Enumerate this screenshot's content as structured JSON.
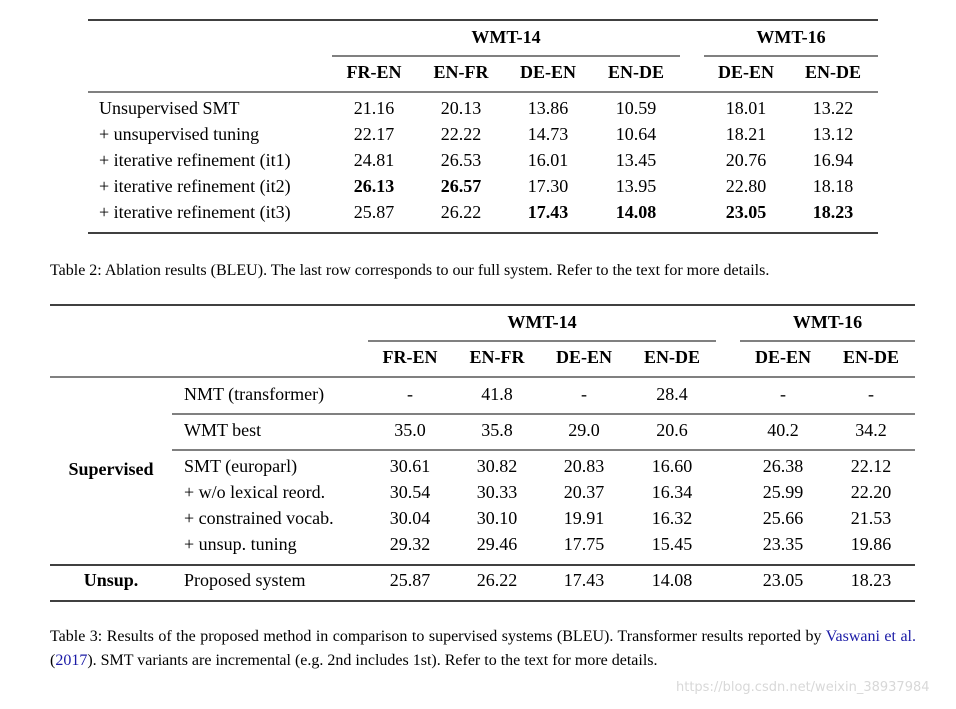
{
  "table2": {
    "groups": [
      "WMT-14",
      "WMT-16"
    ],
    "columns": [
      "FR-EN",
      "EN-FR",
      "DE-EN",
      "EN-DE",
      "DE-EN",
      "EN-DE"
    ],
    "rows": [
      {
        "label": "Unsupervised SMT",
        "cells": [
          "21.16",
          "20.13",
          "13.86",
          "10.59",
          "18.01",
          "13.22"
        ],
        "bold": []
      },
      {
        "label": "+ unsupervised tuning",
        "cells": [
          "22.17",
          "22.22",
          "14.73",
          "10.64",
          "18.21",
          "13.12"
        ],
        "bold": []
      },
      {
        "label": "+ iterative refinement (it1)",
        "cells": [
          "24.81",
          "26.53",
          "16.01",
          "13.45",
          "20.76",
          "16.94"
        ],
        "bold": []
      },
      {
        "label": "+ iterative refinement (it2)",
        "cells": [
          "26.13",
          "26.57",
          "17.30",
          "13.95",
          "22.80",
          "18.18"
        ],
        "bold": [
          0,
          1
        ]
      },
      {
        "label": "+ iterative refinement (it3)",
        "cells": [
          "25.87",
          "26.22",
          "17.43",
          "14.08",
          "23.05",
          "18.23"
        ],
        "bold": [
          2,
          3,
          4,
          5
        ]
      }
    ],
    "caption": "Table 2: Ablation results (BLEU). The last row corresponds to our full system. Refer to the text for more details."
  },
  "table3": {
    "groups": [
      "WMT-14",
      "WMT-16"
    ],
    "columns": [
      "FR-EN",
      "EN-FR",
      "DE-EN",
      "EN-DE",
      "DE-EN",
      "EN-DE"
    ],
    "sections": [
      {
        "group": "Supervised",
        "blocks": [
          [
            {
              "label": "NMT (transformer)",
              "cells": [
                "-",
                "41.8",
                "-",
                "28.4",
                "-",
                "-"
              ]
            }
          ],
          [
            {
              "label": "WMT best",
              "cells": [
                "35.0",
                "35.8",
                "29.0",
                "20.6",
                "40.2",
                "34.2"
              ]
            }
          ],
          [
            {
              "label": "SMT (europarl)",
              "cells": [
                "30.61",
                "30.82",
                "20.83",
                "16.60",
                "26.38",
                "22.12"
              ]
            },
            {
              "label": "+ w/o lexical reord.",
              "cells": [
                "30.54",
                "30.33",
                "20.37",
                "16.34",
                "25.99",
                "22.20"
              ]
            },
            {
              "label": "+ constrained vocab.",
              "cells": [
                "30.04",
                "30.10",
                "19.91",
                "16.32",
                "25.66",
                "21.53"
              ]
            },
            {
              "label": "+ unsup. tuning",
              "cells": [
                "29.32",
                "29.46",
                "17.75",
                "15.45",
                "23.35",
                "19.86"
              ]
            }
          ]
        ]
      },
      {
        "group": "Unsup.",
        "blocks": [
          [
            {
              "label": "Proposed system",
              "cells": [
                "25.87",
                "26.22",
                "17.43",
                "14.08",
                "23.05",
                "18.23"
              ]
            }
          ]
        ]
      }
    ],
    "caption": {
      "before": "Table 3: Results of the proposed method in comparison to supervised systems (BLEU). Transformer results reported by ",
      "link": "Vaswani et al.",
      "open": " (",
      "year": "2017",
      "after": "). SMT variants are incremental (e.g. 2nd includes 1st). Refer to the text for more details."
    }
  },
  "watermark": "https://blog.csdn.net/weixin_38937984"
}
